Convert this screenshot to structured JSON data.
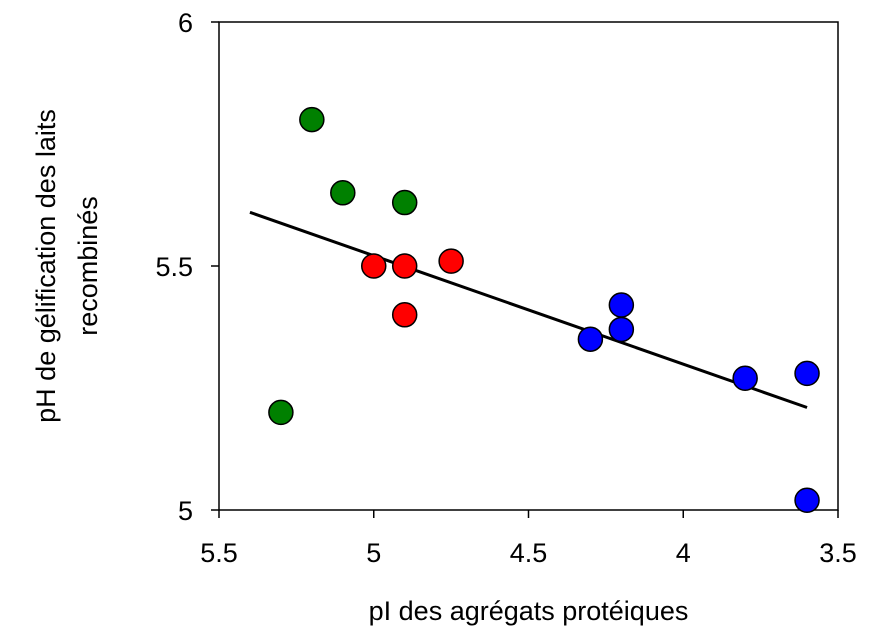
{
  "chart_data": {
    "type": "scatter",
    "title": "",
    "xlabel": "pI des agrégats protéiques",
    "ylabel_lines": [
      "pH de gélification des laits",
      "recombinés"
    ],
    "x_reversed": true,
    "xlim": [
      5.5,
      3.5
    ],
    "ylim": [
      5,
      6
    ],
    "x_ticks": [
      5.5,
      5,
      4.5,
      4,
      3.5
    ],
    "x_tick_labels": [
      "5.5",
      "5",
      "4.5",
      "4",
      "3.5"
    ],
    "y_ticks": [
      5,
      5.5,
      6
    ],
    "y_tick_labels": [
      "5",
      "5.5",
      "6"
    ],
    "grid": false,
    "legend": "none",
    "series": [
      {
        "color": "#008000",
        "points": [
          {
            "x": 5.2,
            "y": 5.8
          },
          {
            "x": 5.1,
            "y": 5.65
          },
          {
            "x": 4.9,
            "y": 5.63
          },
          {
            "x": 5.3,
            "y": 5.2
          }
        ]
      },
      {
        "color": "#ff0000",
        "points": [
          {
            "x": 5.0,
            "y": 5.5
          },
          {
            "x": 4.9,
            "y": 5.5
          },
          {
            "x": 4.75,
            "y": 5.51
          },
          {
            "x": 4.9,
            "y": 5.4
          }
        ]
      },
      {
        "color": "#0000ff",
        "points": [
          {
            "x": 4.2,
            "y": 5.42
          },
          {
            "x": 4.2,
            "y": 5.37
          },
          {
            "x": 4.3,
            "y": 5.35
          },
          {
            "x": 3.8,
            "y": 5.27
          },
          {
            "x": 3.6,
            "y": 5.28
          },
          {
            "x": 3.6,
            "y": 5.02
          }
        ]
      }
    ],
    "trendline": {
      "color": "#000000",
      "from": {
        "x": 5.4,
        "y": 5.61
      },
      "to": {
        "x": 3.6,
        "y": 5.21
      }
    }
  }
}
